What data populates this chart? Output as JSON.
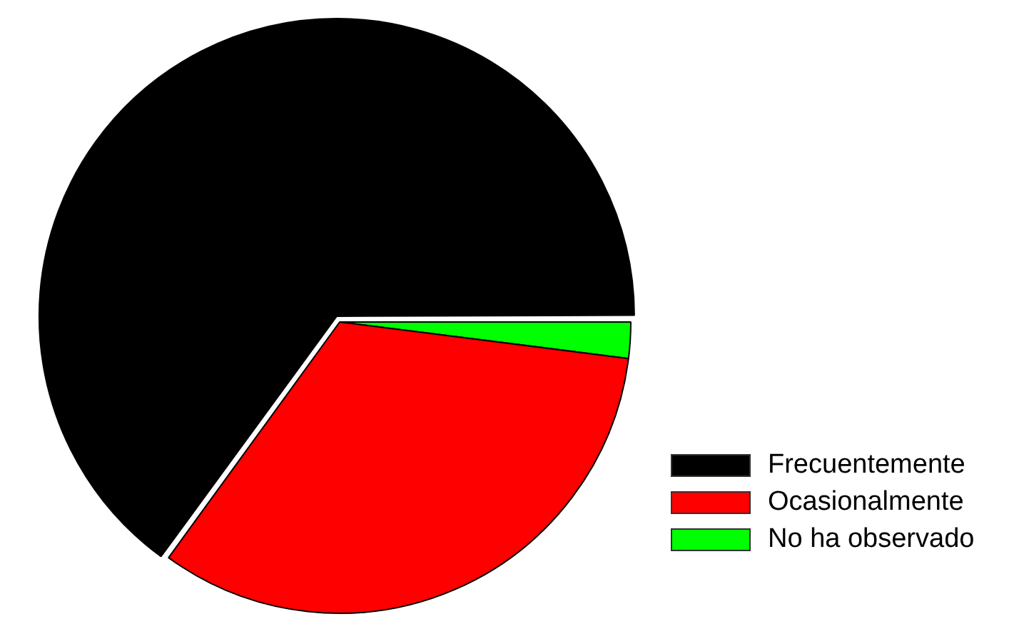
{
  "chart_data": {
    "type": "pie",
    "categories": [
      "Frecuentemente",
      "Ocasionalmente",
      "No ha observado"
    ],
    "values": [
      65,
      33,
      2
    ],
    "colors": [
      "#000000",
      "#ff0000",
      "#00ff00"
    ],
    "legend": "bottom right"
  }
}
